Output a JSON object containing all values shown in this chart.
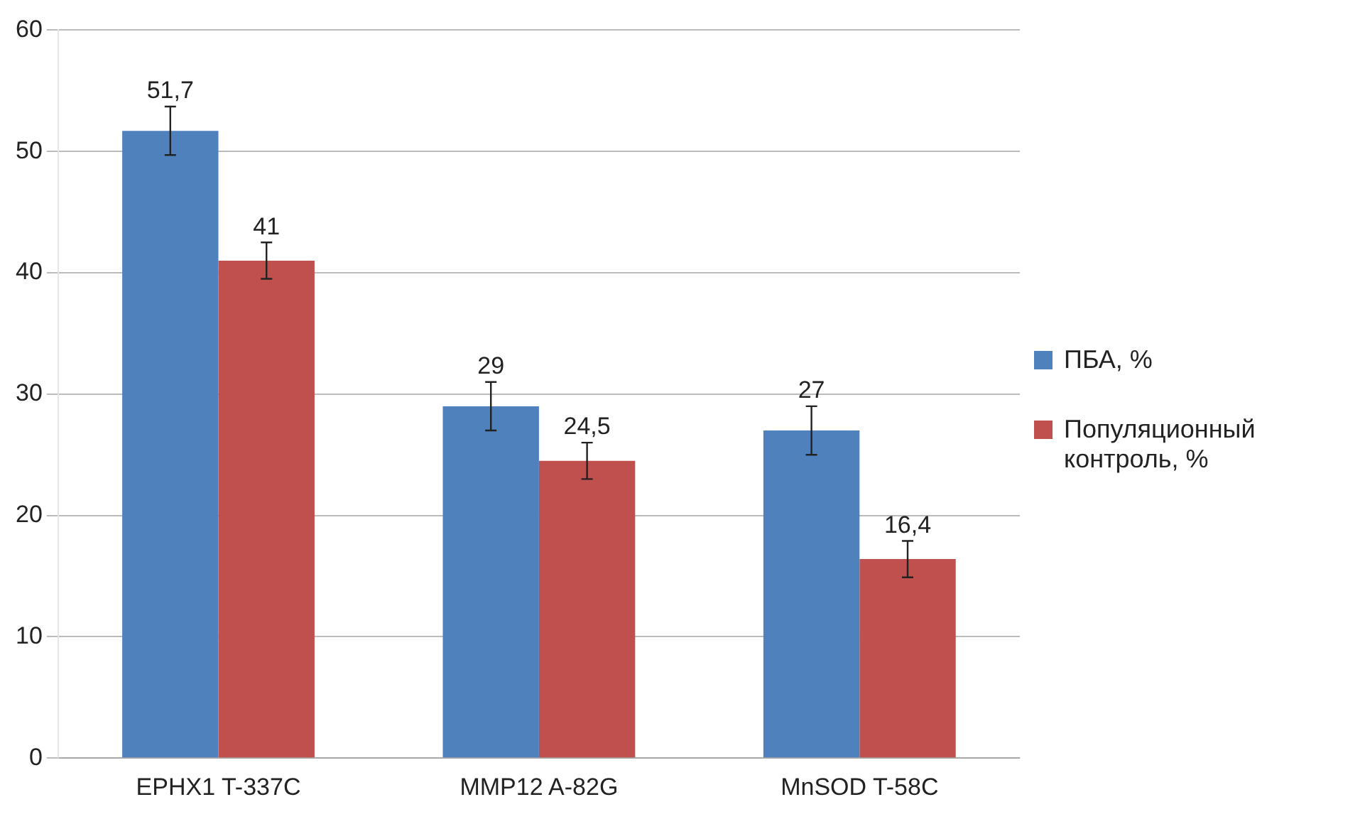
{
  "chart_data": {
    "type": "bar",
    "categories": [
      "EPHX1 T-337C",
      "MMP12 A-82G",
      "MnSOD T-58C"
    ],
    "series": [
      {
        "name": "ПБА, %",
        "color": "#4f81bd",
        "values": [
          51.7,
          29,
          27
        ],
        "errors": [
          2,
          2,
          2
        ],
        "value_labels": [
          "51,7",
          "29",
          "27"
        ]
      },
      {
        "name": "Популяционный контроль, %",
        "color": "#c0504d",
        "values": [
          41,
          24.5,
          16.4
        ],
        "errors": [
          1.5,
          1.5,
          1.5
        ],
        "value_labels": [
          "41",
          "24,5",
          "16,4"
        ]
      }
    ],
    "ylim": [
      0,
      60
    ],
    "yticks": [
      0,
      10,
      20,
      30,
      40,
      50,
      60
    ],
    "grid": "y",
    "legend": "right"
  }
}
